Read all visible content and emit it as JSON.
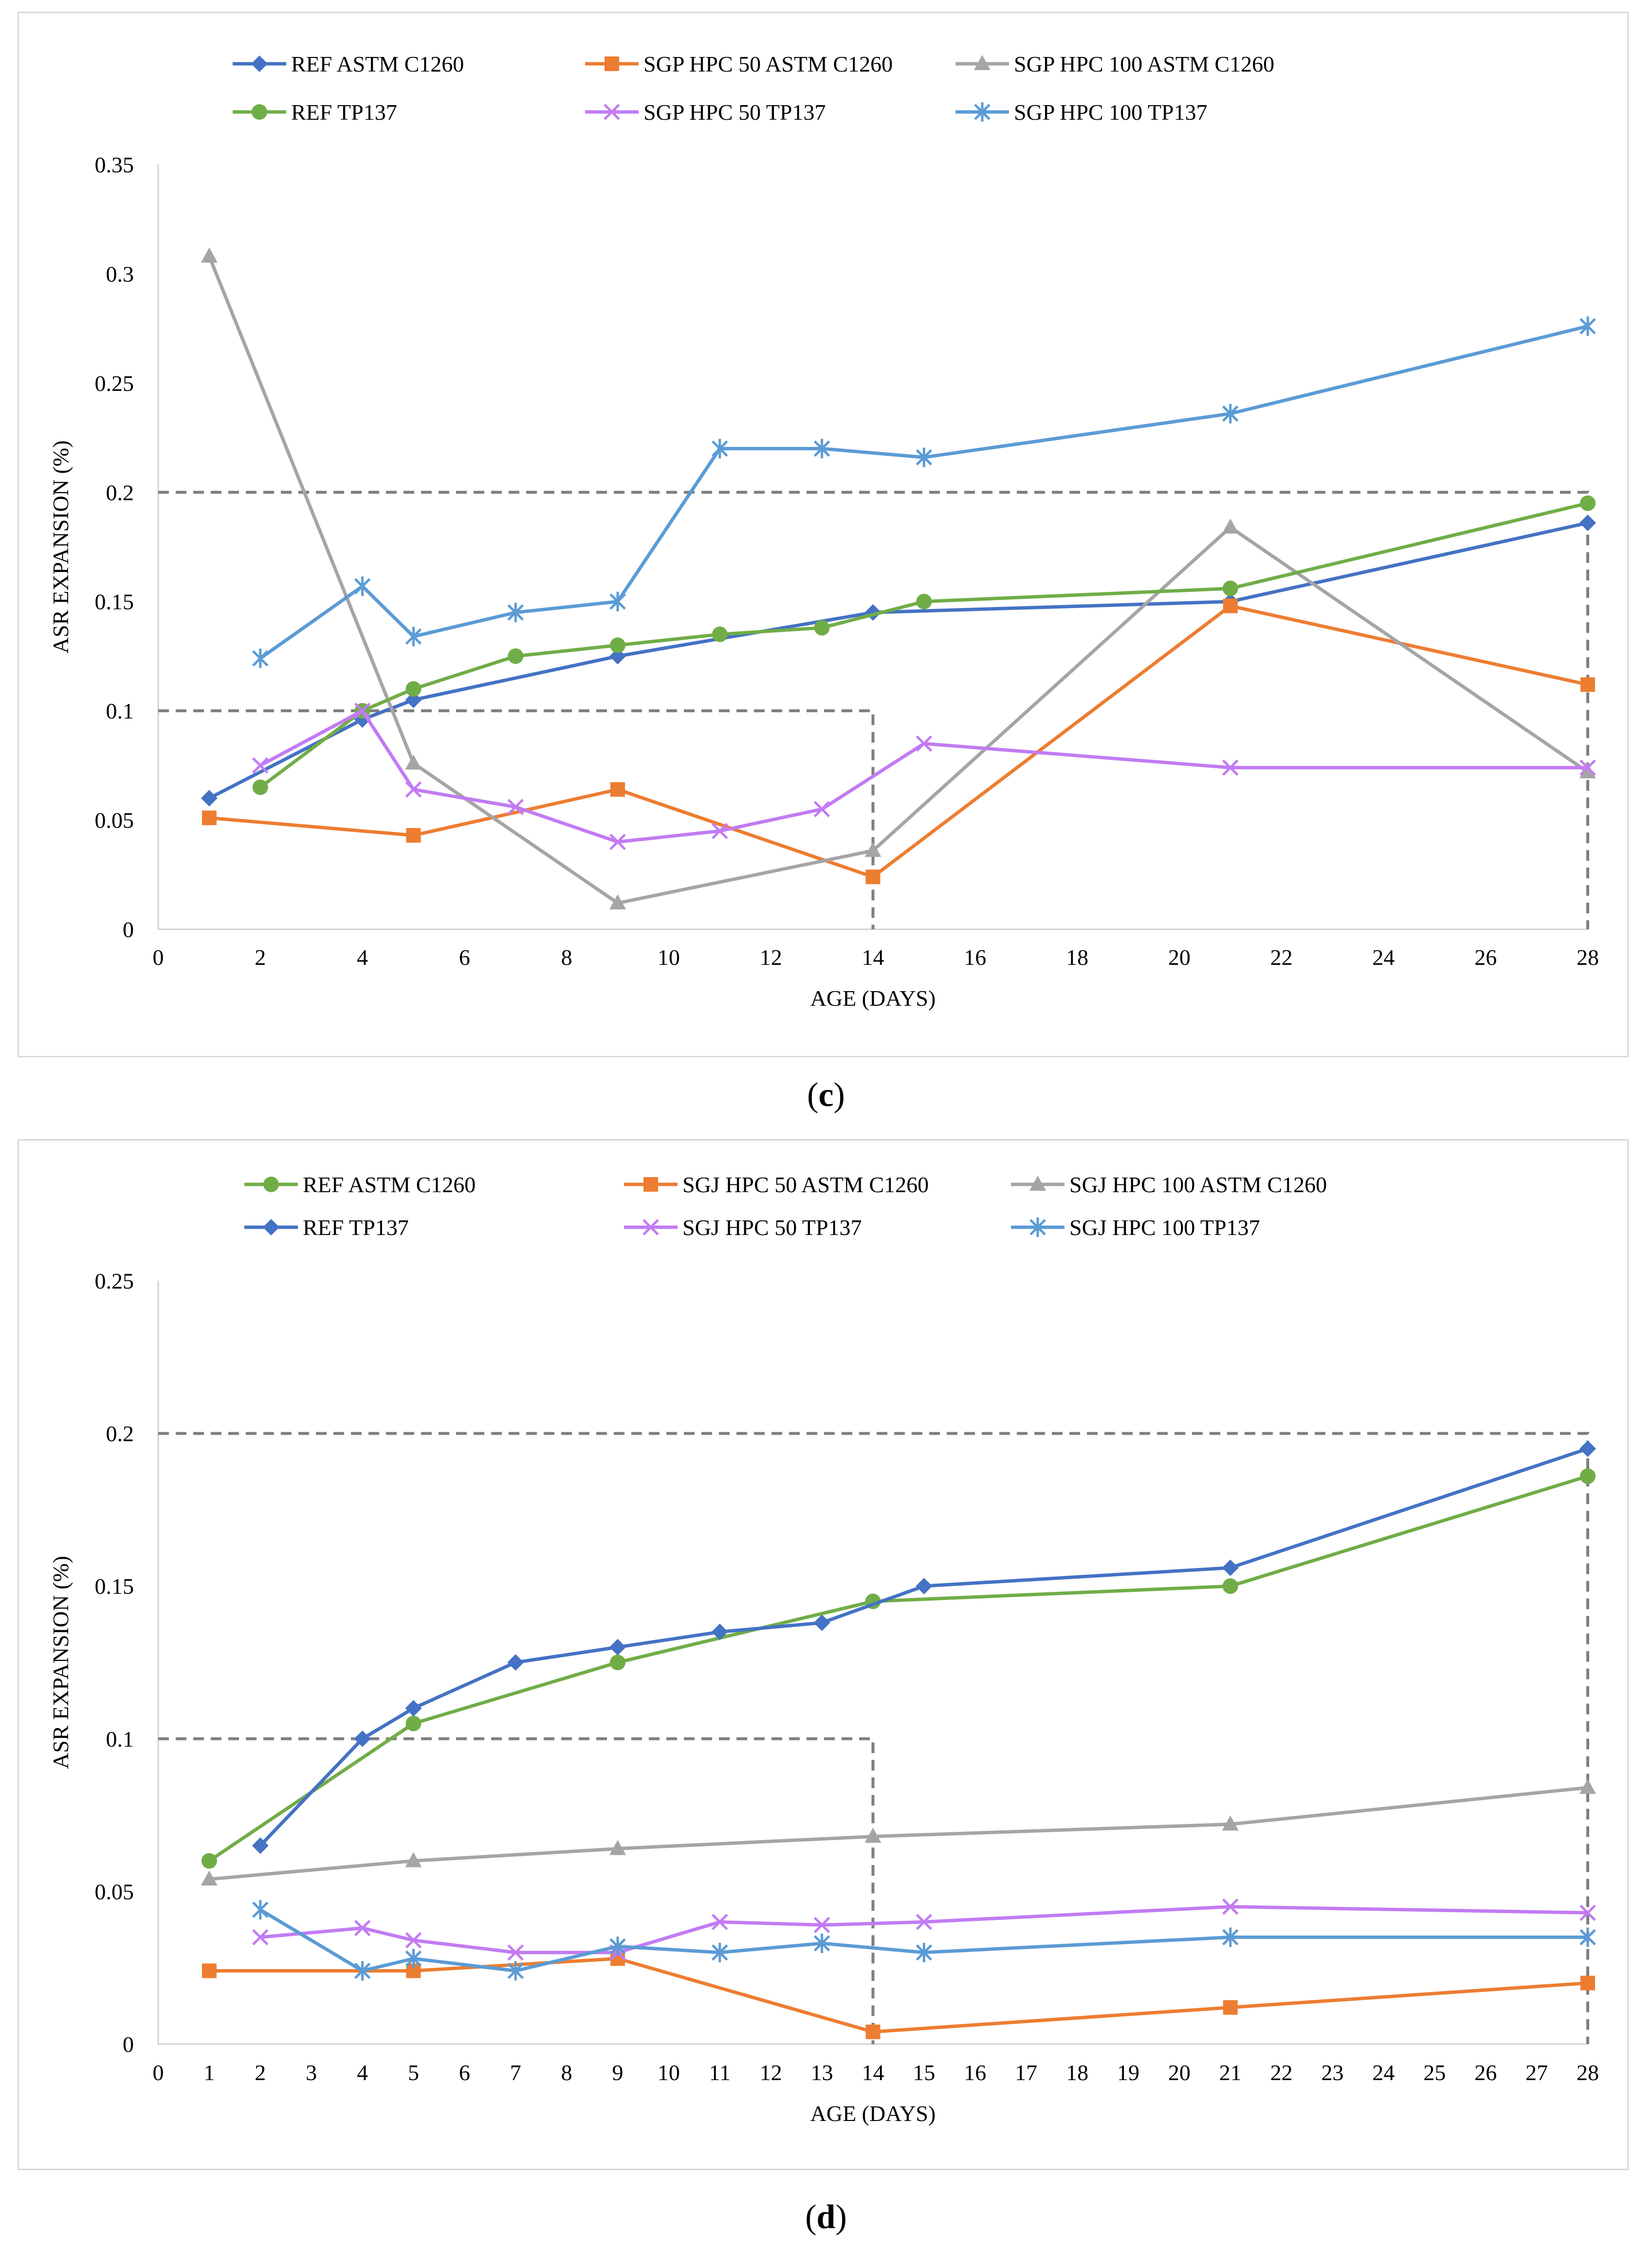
{
  "chart_data": [
    {
      "id": "c",
      "type": "line",
      "caption_letter": "c",
      "xlabel": "AGE (DAYS)",
      "ylabel": "ASR EXPANSION (%)",
      "xlim": [
        0,
        28
      ],
      "ylim": [
        0,
        0.35
      ],
      "xticks": [
        0,
        2,
        4,
        6,
        8,
        10,
        12,
        14,
        16,
        18,
        20,
        22,
        24,
        26,
        28
      ],
      "yticks": [
        0,
        0.05,
        0.1,
        0.15,
        0.2,
        0.25,
        0.3,
        0.35
      ],
      "ytick_labels": [
        "0",
        "0.05",
        "0.1",
        "0.15",
        "0.2",
        "0.25",
        "0.3",
        "0.35"
      ],
      "threshold_lines": [
        {
          "y": 0.1,
          "x_end": 14
        },
        {
          "y": 0.2,
          "x_end": 28
        }
      ],
      "series": [
        {
          "name": "REF ASTM C1260",
          "color": "#4472C4",
          "marker": "diamond",
          "x": [
            1,
            4,
            5,
            9,
            14,
            21,
            28
          ],
          "y": [
            0.06,
            0.096,
            0.105,
            0.125,
            0.145,
            0.15,
            0.186
          ]
        },
        {
          "name": "SGP HPC 50 ASTM C1260",
          "color": "#ED7D31",
          "marker": "square",
          "x": [
            1,
            5,
            9,
            14,
            21,
            28
          ],
          "y": [
            0.051,
            0.043,
            0.064,
            0.024,
            0.148,
            0.112
          ]
        },
        {
          "name": "SGP HPC 100 ASTM C1260",
          "color": "#A5A5A5",
          "marker": "triangle",
          "x": [
            1,
            5,
            9,
            14,
            21,
            28
          ],
          "y": [
            0.308,
            0.076,
            0.012,
            0.036,
            0.184,
            0.072
          ]
        },
        {
          "name": "REF TP137",
          "color": "#70AD47",
          "marker": "circle",
          "x": [
            2,
            4,
            5,
            7,
            9,
            11,
            13,
            15,
            21,
            28
          ],
          "y": [
            0.065,
            0.1,
            0.11,
            0.125,
            0.13,
            0.135,
            0.138,
            0.15,
            0.156,
            0.195
          ]
        },
        {
          "name": "SGP HPC 50 TP137",
          "color": "#C27BF3",
          "marker": "x",
          "x": [
            2,
            4,
            5,
            7,
            9,
            11,
            13,
            15,
            21,
            28
          ],
          "y": [
            0.075,
            0.1,
            0.064,
            0.056,
            0.04,
            0.045,
            0.055,
            0.085,
            0.074,
            0.074
          ]
        },
        {
          "name": "SGP HPC 100 TP137",
          "color": "#5B9BD5",
          "marker": "star",
          "x": [
            2,
            4,
            5,
            7,
            9,
            11,
            13,
            15,
            21,
            28
          ],
          "y": [
            0.124,
            0.157,
            0.134,
            0.145,
            0.15,
            0.22,
            0.22,
            0.216,
            0.236,
            0.276
          ]
        }
      ]
    },
    {
      "id": "d",
      "type": "line",
      "caption_letter": "d",
      "xlabel": "AGE (DAYS)",
      "ylabel": "ASR EXPANSION (%)",
      "xlim": [
        0,
        28
      ],
      "ylim": [
        0,
        0.25
      ],
      "xticks": [
        0,
        1,
        2,
        3,
        4,
        5,
        6,
        7,
        8,
        9,
        10,
        11,
        12,
        13,
        14,
        15,
        16,
        17,
        18,
        19,
        20,
        21,
        22,
        23,
        24,
        25,
        26,
        27,
        28
      ],
      "yticks": [
        0,
        0.05,
        0.1,
        0.15,
        0.2,
        0.25
      ],
      "ytick_labels": [
        "0",
        "0.05",
        "0.1",
        "0.15",
        "0.2",
        "0.25"
      ],
      "threshold_lines": [
        {
          "y": 0.1,
          "x_end": 14
        },
        {
          "y": 0.2,
          "x_end": 28
        }
      ],
      "series": [
        {
          "name": "REF ASTM C1260",
          "color": "#70AD47",
          "marker": "circle",
          "x": [
            1,
            5,
            9,
            14,
            21,
            28
          ],
          "y": [
            0.06,
            0.105,
            0.125,
            0.145,
            0.15,
            0.186
          ]
        },
        {
          "name": "SGJ HPC 50 ASTM C1260",
          "color": "#ED7D31",
          "marker": "square",
          "x": [
            1,
            5,
            9,
            14,
            21,
            28
          ],
          "y": [
            0.024,
            0.024,
            0.028,
            0.004,
            0.012,
            0.02
          ]
        },
        {
          "name": "SGJ HPC 100 ASTM C1260",
          "color": "#A5A5A5",
          "marker": "triangle",
          "x": [
            1,
            5,
            9,
            14,
            21,
            28
          ],
          "y": [
            0.054,
            0.06,
            0.064,
            0.068,
            0.072,
            0.084
          ]
        },
        {
          "name": "REF TP137",
          "color": "#4472C4",
          "marker": "diamond",
          "x": [
            2,
            4,
            5,
            7,
            9,
            11,
            13,
            15,
            21,
            28
          ],
          "y": [
            0.065,
            0.1,
            0.11,
            0.125,
            0.13,
            0.135,
            0.138,
            0.15,
            0.156,
            0.195
          ]
        },
        {
          "name": "SGJ HPC 50 TP137",
          "color": "#C27BF3",
          "marker": "x",
          "x": [
            2,
            4,
            5,
            7,
            9,
            11,
            13,
            15,
            21,
            28
          ],
          "y": [
            0.035,
            0.038,
            0.034,
            0.03,
            0.03,
            0.04,
            0.039,
            0.04,
            0.045,
            0.043
          ]
        },
        {
          "name": "SGJ HPC 100 TP137",
          "color": "#5B9BD5",
          "marker": "star",
          "x": [
            2,
            4,
            5,
            7,
            9,
            11,
            13,
            15,
            21,
            28
          ],
          "y": [
            0.044,
            0.024,
            0.028,
            0.024,
            0.032,
            0.03,
            0.033,
            0.03,
            0.035,
            0.035
          ]
        }
      ]
    }
  ],
  "captions": {
    "c": "c",
    "d": "d"
  }
}
